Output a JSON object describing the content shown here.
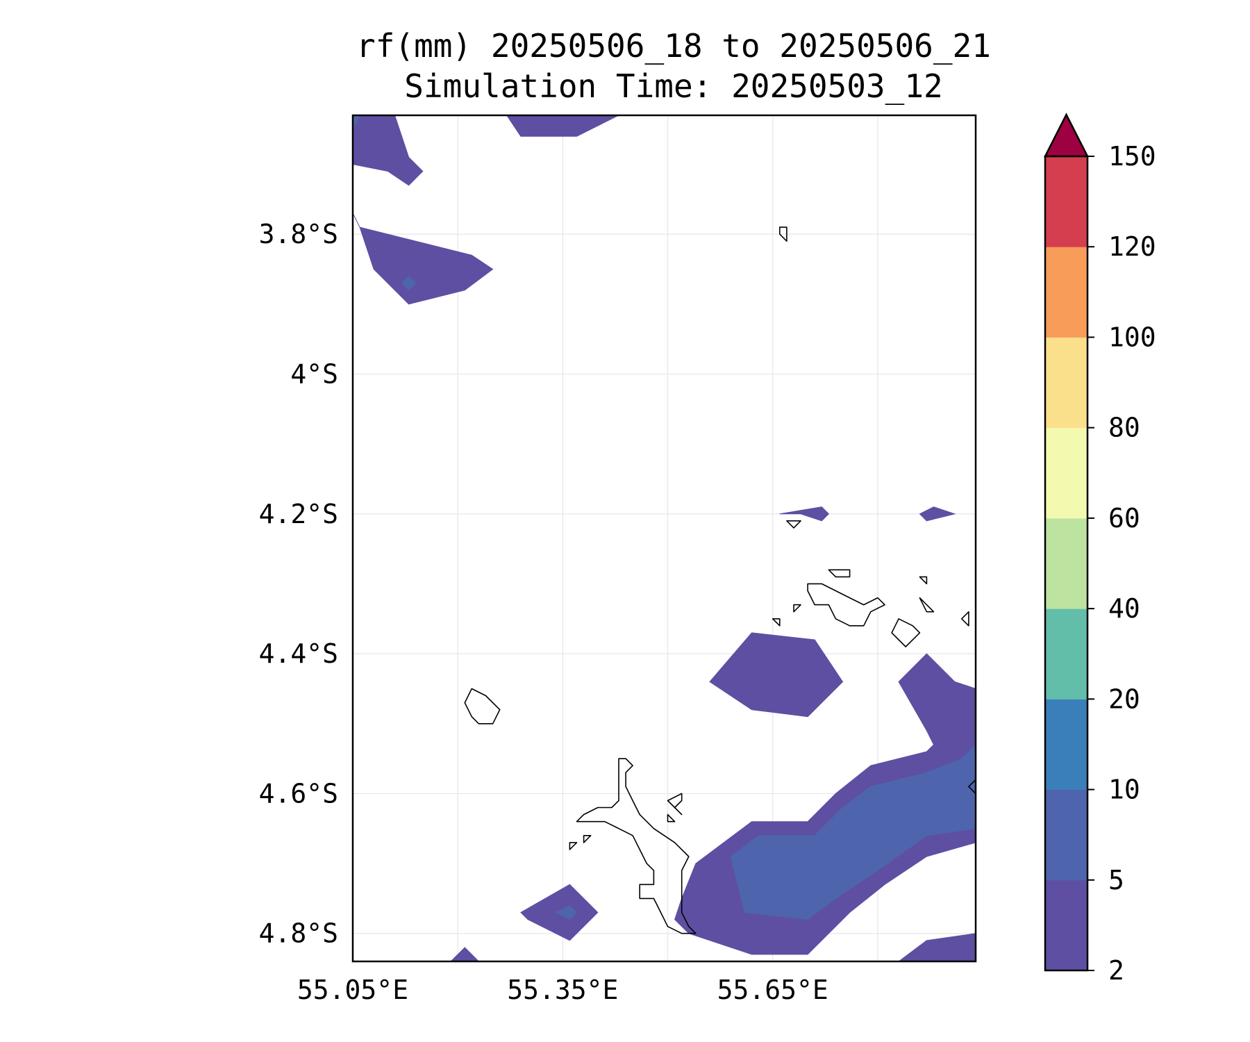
{
  "title": {
    "line1": "rf(mm) 20250506_18 to 20250506_21",
    "line2": "Simulation Time: 20250503_12"
  },
  "map": {
    "lon_range": [
      55.05,
      55.94
    ],
    "lat_range": [
      -4.84,
      -3.63
    ],
    "lat_ticks": [
      {
        "value": -3.8,
        "label": "3.8°S"
      },
      {
        "value": -4.0,
        "label": "4°S"
      },
      {
        "value": -4.2,
        "label": "4.2°S"
      },
      {
        "value": -4.4,
        "label": "4.4°S"
      },
      {
        "value": -4.6,
        "label": "4.6°S"
      },
      {
        "value": -4.8,
        "label": "4.8°S"
      }
    ],
    "lon_ticks": [
      {
        "value": 55.05,
        "label": "55.05°E"
      },
      {
        "value": 55.35,
        "label": "55.35°E"
      },
      {
        "value": 55.65,
        "label": "55.65°E"
      }
    ],
    "gridlines": true,
    "rainfall_regions": [
      {
        "color": "#5e4fa2",
        "level": "2-5",
        "points": [
          [
            55.05,
            -3.63
          ],
          [
            55.05,
            -3.7
          ],
          [
            55.1,
            -3.71
          ],
          [
            55.13,
            -3.73
          ],
          [
            55.15,
            -3.71
          ],
          [
            55.13,
            -3.69
          ],
          [
            55.11,
            -3.63
          ]
        ]
      },
      {
        "color": "#5e4fa2",
        "level": "2-5",
        "points": [
          [
            55.27,
            -3.63
          ],
          [
            55.29,
            -3.66
          ],
          [
            55.37,
            -3.66
          ],
          [
            55.43,
            -3.63
          ]
        ]
      },
      {
        "color": "#5e4fa2",
        "level": "2-5",
        "points": [
          [
            55.05,
            -3.77
          ],
          [
            55.06,
            -3.79
          ],
          [
            55.08,
            -3.85
          ],
          [
            55.13,
            -3.9
          ],
          [
            55.21,
            -3.88
          ],
          [
            55.25,
            -3.85
          ],
          [
            55.22,
            -3.83
          ],
          [
            55.06,
            -3.79
          ]
        ]
      },
      {
        "color": "#5e4fa2",
        "level": "2-5",
        "points": [
          [
            55.66,
            -4.2
          ],
          [
            55.72,
            -4.19
          ],
          [
            55.73,
            -4.2
          ],
          [
            55.72,
            -4.21
          ],
          [
            55.69,
            -4.2
          ]
        ]
      },
      {
        "color": "#5e4fa2",
        "level": "2-5",
        "points": [
          [
            55.86,
            -4.2
          ],
          [
            55.88,
            -4.19
          ],
          [
            55.91,
            -4.2
          ],
          [
            55.87,
            -4.21
          ]
        ]
      },
      {
        "color": "#5e4fa2",
        "level": "2-5",
        "points": [
          [
            55.62,
            -4.37
          ],
          [
            55.71,
            -4.38
          ],
          [
            55.75,
            -4.44
          ],
          [
            55.7,
            -4.49
          ],
          [
            55.62,
            -4.48
          ],
          [
            55.56,
            -4.44
          ]
        ]
      },
      {
        "color": "#5e4fa2",
        "level": "2-5",
        "points": [
          [
            55.94,
            -4.45
          ],
          [
            55.91,
            -4.44
          ],
          [
            55.87,
            -4.4
          ],
          [
            55.83,
            -4.44
          ],
          [
            55.87,
            -4.51
          ],
          [
            55.88,
            -4.53
          ],
          [
            55.87,
            -4.54
          ],
          [
            55.79,
            -4.56
          ],
          [
            55.74,
            -4.6
          ],
          [
            55.7,
            -4.64
          ],
          [
            55.62,
            -4.64
          ],
          [
            55.54,
            -4.7
          ],
          [
            55.52,
            -4.75
          ],
          [
            55.51,
            -4.78
          ],
          [
            55.53,
            -4.8
          ],
          [
            55.62,
            -4.83
          ],
          [
            55.7,
            -4.83
          ],
          [
            55.76,
            -4.77
          ],
          [
            55.81,
            -4.73
          ],
          [
            55.87,
            -4.69
          ],
          [
            55.94,
            -4.67
          ]
        ]
      },
      {
        "color": "#4e64ad",
        "level": "5-10",
        "points": [
          [
            55.94,
            -4.53
          ],
          [
            55.92,
            -4.55
          ],
          [
            55.87,
            -4.57
          ],
          [
            55.79,
            -4.59
          ],
          [
            55.75,
            -4.62
          ],
          [
            55.71,
            -4.66
          ],
          [
            55.63,
            -4.66
          ],
          [
            55.59,
            -4.69
          ],
          [
            55.61,
            -4.77
          ],
          [
            55.7,
            -4.78
          ],
          [
            55.74,
            -4.75
          ],
          [
            55.8,
            -4.71
          ],
          [
            55.87,
            -4.66
          ],
          [
            55.94,
            -4.65
          ]
        ]
      },
      {
        "color": "#5e4fa2",
        "level": "2-5",
        "points": [
          [
            55.29,
            -4.77
          ],
          [
            55.36,
            -4.73
          ],
          [
            55.4,
            -4.77
          ],
          [
            55.36,
            -4.81
          ],
          [
            55.3,
            -4.78
          ]
        ]
      },
      {
        "color": "#5e4fa2",
        "level": "2-5",
        "points": [
          [
            55.19,
            -4.84
          ],
          [
            55.21,
            -4.82
          ],
          [
            55.23,
            -4.84
          ]
        ]
      },
      {
        "color": "#5e4fa2",
        "level": "2-5",
        "points": [
          [
            55.83,
            -4.84
          ],
          [
            55.87,
            -4.81
          ],
          [
            55.94,
            -4.8
          ],
          [
            55.94,
            -4.84
          ]
        ]
      },
      {
        "color": "#4e64ad",
        "level": "5-10",
        "points": [
          [
            55.12,
            -3.87
          ],
          [
            55.13,
            -3.86
          ],
          [
            55.14,
            -3.87
          ],
          [
            55.13,
            -3.88
          ]
        ]
      },
      {
        "color": "#4e64ad",
        "level": "5-10",
        "points": [
          [
            55.34,
            -4.77
          ],
          [
            55.36,
            -4.76
          ],
          [
            55.37,
            -4.77
          ],
          [
            55.36,
            -4.78
          ]
        ]
      },
      {
        "color": "#4e64ad",
        "level": "5-10",
        "points": [
          [
            55.05,
            -3.63
          ],
          [
            55.06,
            -3.63
          ],
          [
            55.05,
            -3.65
          ]
        ]
      }
    ],
    "coastlines": [
      [
        [
          55.22,
          -4.45
        ],
        [
          55.24,
          -4.46
        ],
        [
          55.26,
          -4.48
        ],
        [
          55.25,
          -4.5
        ],
        [
          55.23,
          -4.5
        ],
        [
          55.22,
          -4.49
        ],
        [
          55.21,
          -4.47
        ]
      ],
      [
        [
          55.43,
          -4.61
        ],
        [
          55.42,
          -4.62
        ],
        [
          55.4,
          -4.62
        ],
        [
          55.38,
          -4.63
        ],
        [
          55.37,
          -4.64
        ],
        [
          55.38,
          -4.64
        ],
        [
          55.41,
          -4.64
        ],
        [
          55.43,
          -4.65
        ],
        [
          55.45,
          -4.66
        ],
        [
          55.46,
          -4.68
        ],
        [
          55.47,
          -4.7
        ],
        [
          55.48,
          -4.71
        ],
        [
          55.48,
          -4.73
        ],
        [
          55.46,
          -4.73
        ],
        [
          55.46,
          -4.75
        ],
        [
          55.48,
          -4.75
        ],
        [
          55.49,
          -4.77
        ],
        [
          55.5,
          -4.79
        ],
        [
          55.52,
          -4.8
        ],
        [
          55.54,
          -4.8
        ],
        [
          55.54,
          -4.8
        ],
        [
          55.53,
          -4.79
        ],
        [
          55.52,
          -4.77
        ],
        [
          55.52,
          -4.75
        ],
        [
          55.52,
          -4.73
        ],
        [
          55.52,
          -4.71
        ],
        [
          55.53,
          -4.69
        ],
        [
          55.51,
          -4.67
        ],
        [
          55.48,
          -4.65
        ],
        [
          55.46,
          -4.63
        ],
        [
          55.45,
          -4.61
        ],
        [
          55.44,
          -4.59
        ],
        [
          55.44,
          -4.57
        ],
        [
          55.45,
          -4.56
        ],
        [
          55.44,
          -4.55
        ],
        [
          55.43,
          -4.55
        ]
      ],
      [
        [
          55.5,
          -4.61
        ],
        [
          55.52,
          -4.6
        ],
        [
          55.52,
          -4.61
        ],
        [
          55.51,
          -4.62
        ]
      ],
      [
        [
          55.5,
          -4.63
        ],
        [
          55.51,
          -4.64
        ],
        [
          55.51,
          -4.64
        ],
        [
          55.5,
          -4.64
        ]
      ],
      [
        [
          55.51,
          -4.62
        ],
        [
          55.52,
          -4.63
        ],
        [
          55.52,
          -4.63
        ]
      ],
      [
        [
          55.38,
          -4.66
        ],
        [
          55.39,
          -4.66
        ],
        [
          55.38,
          -4.67
        ]
      ],
      [
        [
          55.36,
          -4.67
        ],
        [
          55.37,
          -4.67
        ],
        [
          55.36,
          -4.68
        ]
      ],
      [
        [
          55.66,
          -3.79
        ],
        [
          55.67,
          -3.79
        ],
        [
          55.67,
          -3.81
        ],
        [
          55.66,
          -3.8
        ]
      ],
      [
        [
          55.67,
          -4.21
        ],
        [
          55.69,
          -4.21
        ],
        [
          55.68,
          -4.22
        ]
      ],
      [
        [
          55.7,
          -4.3
        ],
        [
          55.72,
          -4.3
        ],
        [
          55.74,
          -4.31
        ],
        [
          55.76,
          -4.32
        ],
        [
          55.78,
          -4.33
        ],
        [
          55.8,
          -4.32
        ],
        [
          55.81,
          -4.33
        ],
        [
          55.79,
          -4.34
        ],
        [
          55.78,
          -4.36
        ],
        [
          55.76,
          -4.36
        ],
        [
          55.74,
          -4.35
        ],
        [
          55.73,
          -4.33
        ],
        [
          55.71,
          -4.33
        ],
        [
          55.7,
          -4.31
        ]
      ],
      [
        [
          55.73,
          -4.28
        ],
        [
          55.76,
          -4.28
        ],
        [
          55.76,
          -4.29
        ],
        [
          55.74,
          -4.29
        ]
      ],
      [
        [
          55.68,
          -4.33
        ],
        [
          55.69,
          -4.33
        ],
        [
          55.68,
          -4.34
        ]
      ],
      [
        [
          55.65,
          -4.35
        ],
        [
          55.66,
          -4.35
        ],
        [
          55.66,
          -4.36
        ]
      ],
      [
        [
          55.86,
          -4.29
        ],
        [
          55.87,
          -4.29
        ],
        [
          55.87,
          -4.3
        ]
      ],
      [
        [
          55.86,
          -4.32
        ],
        [
          55.87,
          -4.33
        ],
        [
          55.88,
          -4.34
        ],
        [
          55.87,
          -4.34
        ]
      ],
      [
        [
          55.83,
          -4.35
        ],
        [
          55.85,
          -4.36
        ],
        [
          55.86,
          -4.37
        ],
        [
          55.84,
          -4.39
        ],
        [
          55.83,
          -4.38
        ],
        [
          55.82,
          -4.37
        ]
      ],
      [
        [
          55.93,
          -4.34
        ],
        [
          55.93,
          -4.36
        ],
        [
          55.92,
          -4.35
        ]
      ],
      [
        [
          55.94,
          -4.58
        ],
        [
          55.93,
          -4.59
        ],
        [
          55.94,
          -4.6
        ]
      ]
    ]
  },
  "colorbar": {
    "levels": [
      {
        "label": "2",
        "color": "#5e4fa2"
      },
      {
        "label": "5",
        "color": "#4e64ad"
      },
      {
        "label": "10",
        "color": "#3a7fba"
      },
      {
        "label": "20",
        "color": "#63bea9"
      },
      {
        "label": "40",
        "color": "#bde3a1"
      },
      {
        "label": "60",
        "color": "#f3f9ae"
      },
      {
        "label": "80",
        "color": "#fbe08c"
      },
      {
        "label": "100",
        "color": "#f89c5a"
      },
      {
        "label": "120",
        "color": "#d53e4f"
      },
      {
        "label": "150",
        "color": ""
      }
    ],
    "extend_color": "#9e0142"
  }
}
